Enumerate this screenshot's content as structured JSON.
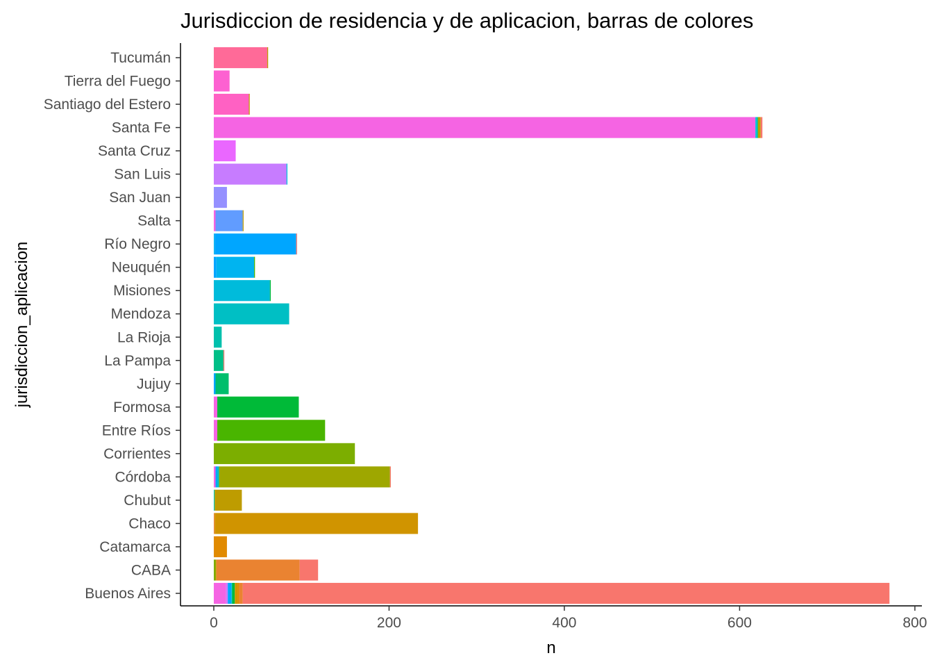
{
  "chart_data": {
    "type": "bar",
    "orientation": "horizontal",
    "stacked": true,
    "title": "Jurisdiccion de residencia y de aplicacion, barras de colores",
    "xlabel": "n",
    "ylabel": "jurisdiccion_aplicacion",
    "xlim": [
      -38,
      808
    ],
    "x_ticks": [
      0,
      200,
      400,
      600,
      800
    ],
    "grid": false,
    "legend": "none",
    "categories": [
      "Buenos Aires",
      "CABA",
      "Catamarca",
      "Chaco",
      "Chubut",
      "Córdoba",
      "Corrientes",
      "Entre Ríos",
      "Formosa",
      "Jujuy",
      "La Pampa",
      "La Rioja",
      "Mendoza",
      "Misiones",
      "Neuquén",
      "Río Negro",
      "Salta",
      "San Juan",
      "San Luis",
      "Santa Cruz",
      "Santa Fe",
      "Santiago del Estero",
      "Tierra del Fuego",
      "Tucumán"
    ],
    "colors": {
      "Buenos Aires": "#F8766D",
      "CABA": "#EA8331",
      "Catamarca": "#E18A00",
      "Chaco": "#D09400",
      "Chubut": "#BE9C00",
      "Córdoba": "#9EA700",
      "Corrientes": "#7CAE00",
      "Entre Ríos": "#49B500",
      "Formosa": "#00BA38",
      "Jujuy": "#00BE6C",
      "La Pampa": "#00BF87",
      "La Rioja": "#00C0AC",
      "Mendoza": "#00BFC4",
      "Misiones": "#00BBDB",
      "Neuquén": "#00B4F0",
      "Río Negro": "#00A6FF",
      "Salta": "#619CFF",
      "San Juan": "#9590FF",
      "San Luis": "#C77CFF",
      "Santa Cruz": "#EA67FF",
      "Santa Fe": "#F564E3",
      "Santiago del Estero": "#FF61C3",
      "Tierra del Fuego": "#FD61D1",
      "Tucumán": "#FF6A98"
    },
    "rows": [
      {
        "category": "Buenos Aires",
        "segments": [
          [
            "Santa Fe",
            14
          ],
          [
            "San Luis",
            2
          ],
          [
            "Río Negro",
            4
          ],
          [
            "Mendoza",
            1
          ],
          [
            "Formosa",
            3
          ],
          [
            "Chaco",
            3
          ],
          [
            "Catamarca",
            2
          ],
          [
            "CABA",
            4
          ],
          [
            "Buenos Aires",
            738
          ]
        ]
      },
      {
        "category": "CABA",
        "segments": [
          [
            "Corrientes",
            2
          ],
          [
            "Chubut",
            1
          ],
          [
            "CABA",
            95
          ],
          [
            "Buenos Aires",
            21
          ]
        ]
      },
      {
        "category": "Catamarca",
        "segments": [
          [
            "Catamarca",
            15
          ]
        ]
      },
      {
        "category": "Chaco",
        "segments": [
          [
            "CABA",
            1
          ],
          [
            "Chaco",
            232
          ]
        ]
      },
      {
        "category": "Chubut",
        "segments": [
          [
            "La Rioja",
            1
          ],
          [
            "Chubut",
            31
          ]
        ]
      },
      {
        "category": "Córdoba",
        "segments": [
          [
            "Santa Fe",
            2
          ],
          [
            "Río Negro",
            2
          ],
          [
            "Mendoza",
            2
          ],
          [
            "Córdoba",
            195
          ],
          [
            "Buenos Aires",
            1
          ]
        ]
      },
      {
        "category": "Corrientes",
        "segments": [
          [
            "Corrientes",
            161
          ]
        ]
      },
      {
        "category": "Entre Ríos",
        "segments": [
          [
            "Santa Fe",
            4
          ],
          [
            "Entre Ríos",
            123
          ]
        ]
      },
      {
        "category": "Formosa",
        "segments": [
          [
            "Santa Fe",
            4
          ],
          [
            "Formosa",
            93
          ]
        ]
      },
      {
        "category": "Jujuy",
        "segments": [
          [
            "Río Negro",
            2
          ],
          [
            "Jujuy",
            15
          ]
        ]
      },
      {
        "category": "La Pampa",
        "segments": [
          [
            "La Pampa",
            11
          ],
          [
            "Buenos Aires",
            1
          ]
        ]
      },
      {
        "category": "La Rioja",
        "segments": [
          [
            "La Rioja",
            9
          ]
        ]
      },
      {
        "category": "Mendoza",
        "segments": [
          [
            "Mendoza",
            86
          ]
        ]
      },
      {
        "category": "Misiones",
        "segments": [
          [
            "Misiones",
            64
          ],
          [
            "Formosa",
            1
          ]
        ]
      },
      {
        "category": "Neuquén",
        "segments": [
          [
            "Río Negro",
            3
          ],
          [
            "Neuquén",
            43
          ],
          [
            "Entre Ríos",
            1
          ]
        ]
      },
      {
        "category": "Río Negro",
        "segments": [
          [
            "Neuquén",
            1
          ],
          [
            "Río Negro",
            93
          ],
          [
            "Buenos Aires",
            1
          ]
        ]
      },
      {
        "category": "Salta",
        "segments": [
          [
            "Santa Fe",
            2
          ],
          [
            "Salta",
            31
          ],
          [
            "Chubut",
            1
          ]
        ]
      },
      {
        "category": "San Juan",
        "segments": [
          [
            "San Juan",
            15
          ]
        ]
      },
      {
        "category": "San Luis",
        "segments": [
          [
            "San Luis",
            83
          ],
          [
            "Misiones",
            1
          ]
        ]
      },
      {
        "category": "Santa Cruz",
        "segments": [
          [
            "Santa Cruz",
            25
          ]
        ]
      },
      {
        "category": "Santa Fe",
        "segments": [
          [
            "Santa Fe",
            618
          ],
          [
            "Misiones",
            2
          ],
          [
            "Jujuy",
            1
          ],
          [
            "Chubut",
            3
          ],
          [
            "Buenos Aires",
            2
          ]
        ]
      },
      {
        "category": "Santiago del Estero",
        "segments": [
          [
            "Santiago del Estero",
            40
          ],
          [
            "Chubut",
            1
          ]
        ]
      },
      {
        "category": "Tierra del Fuego",
        "segments": [
          [
            "Tierra del Fuego",
            18
          ]
        ]
      },
      {
        "category": "Tucumán",
        "segments": [
          [
            "Tucumán",
            61
          ],
          [
            "Chubut",
            1
          ]
        ]
      }
    ]
  }
}
